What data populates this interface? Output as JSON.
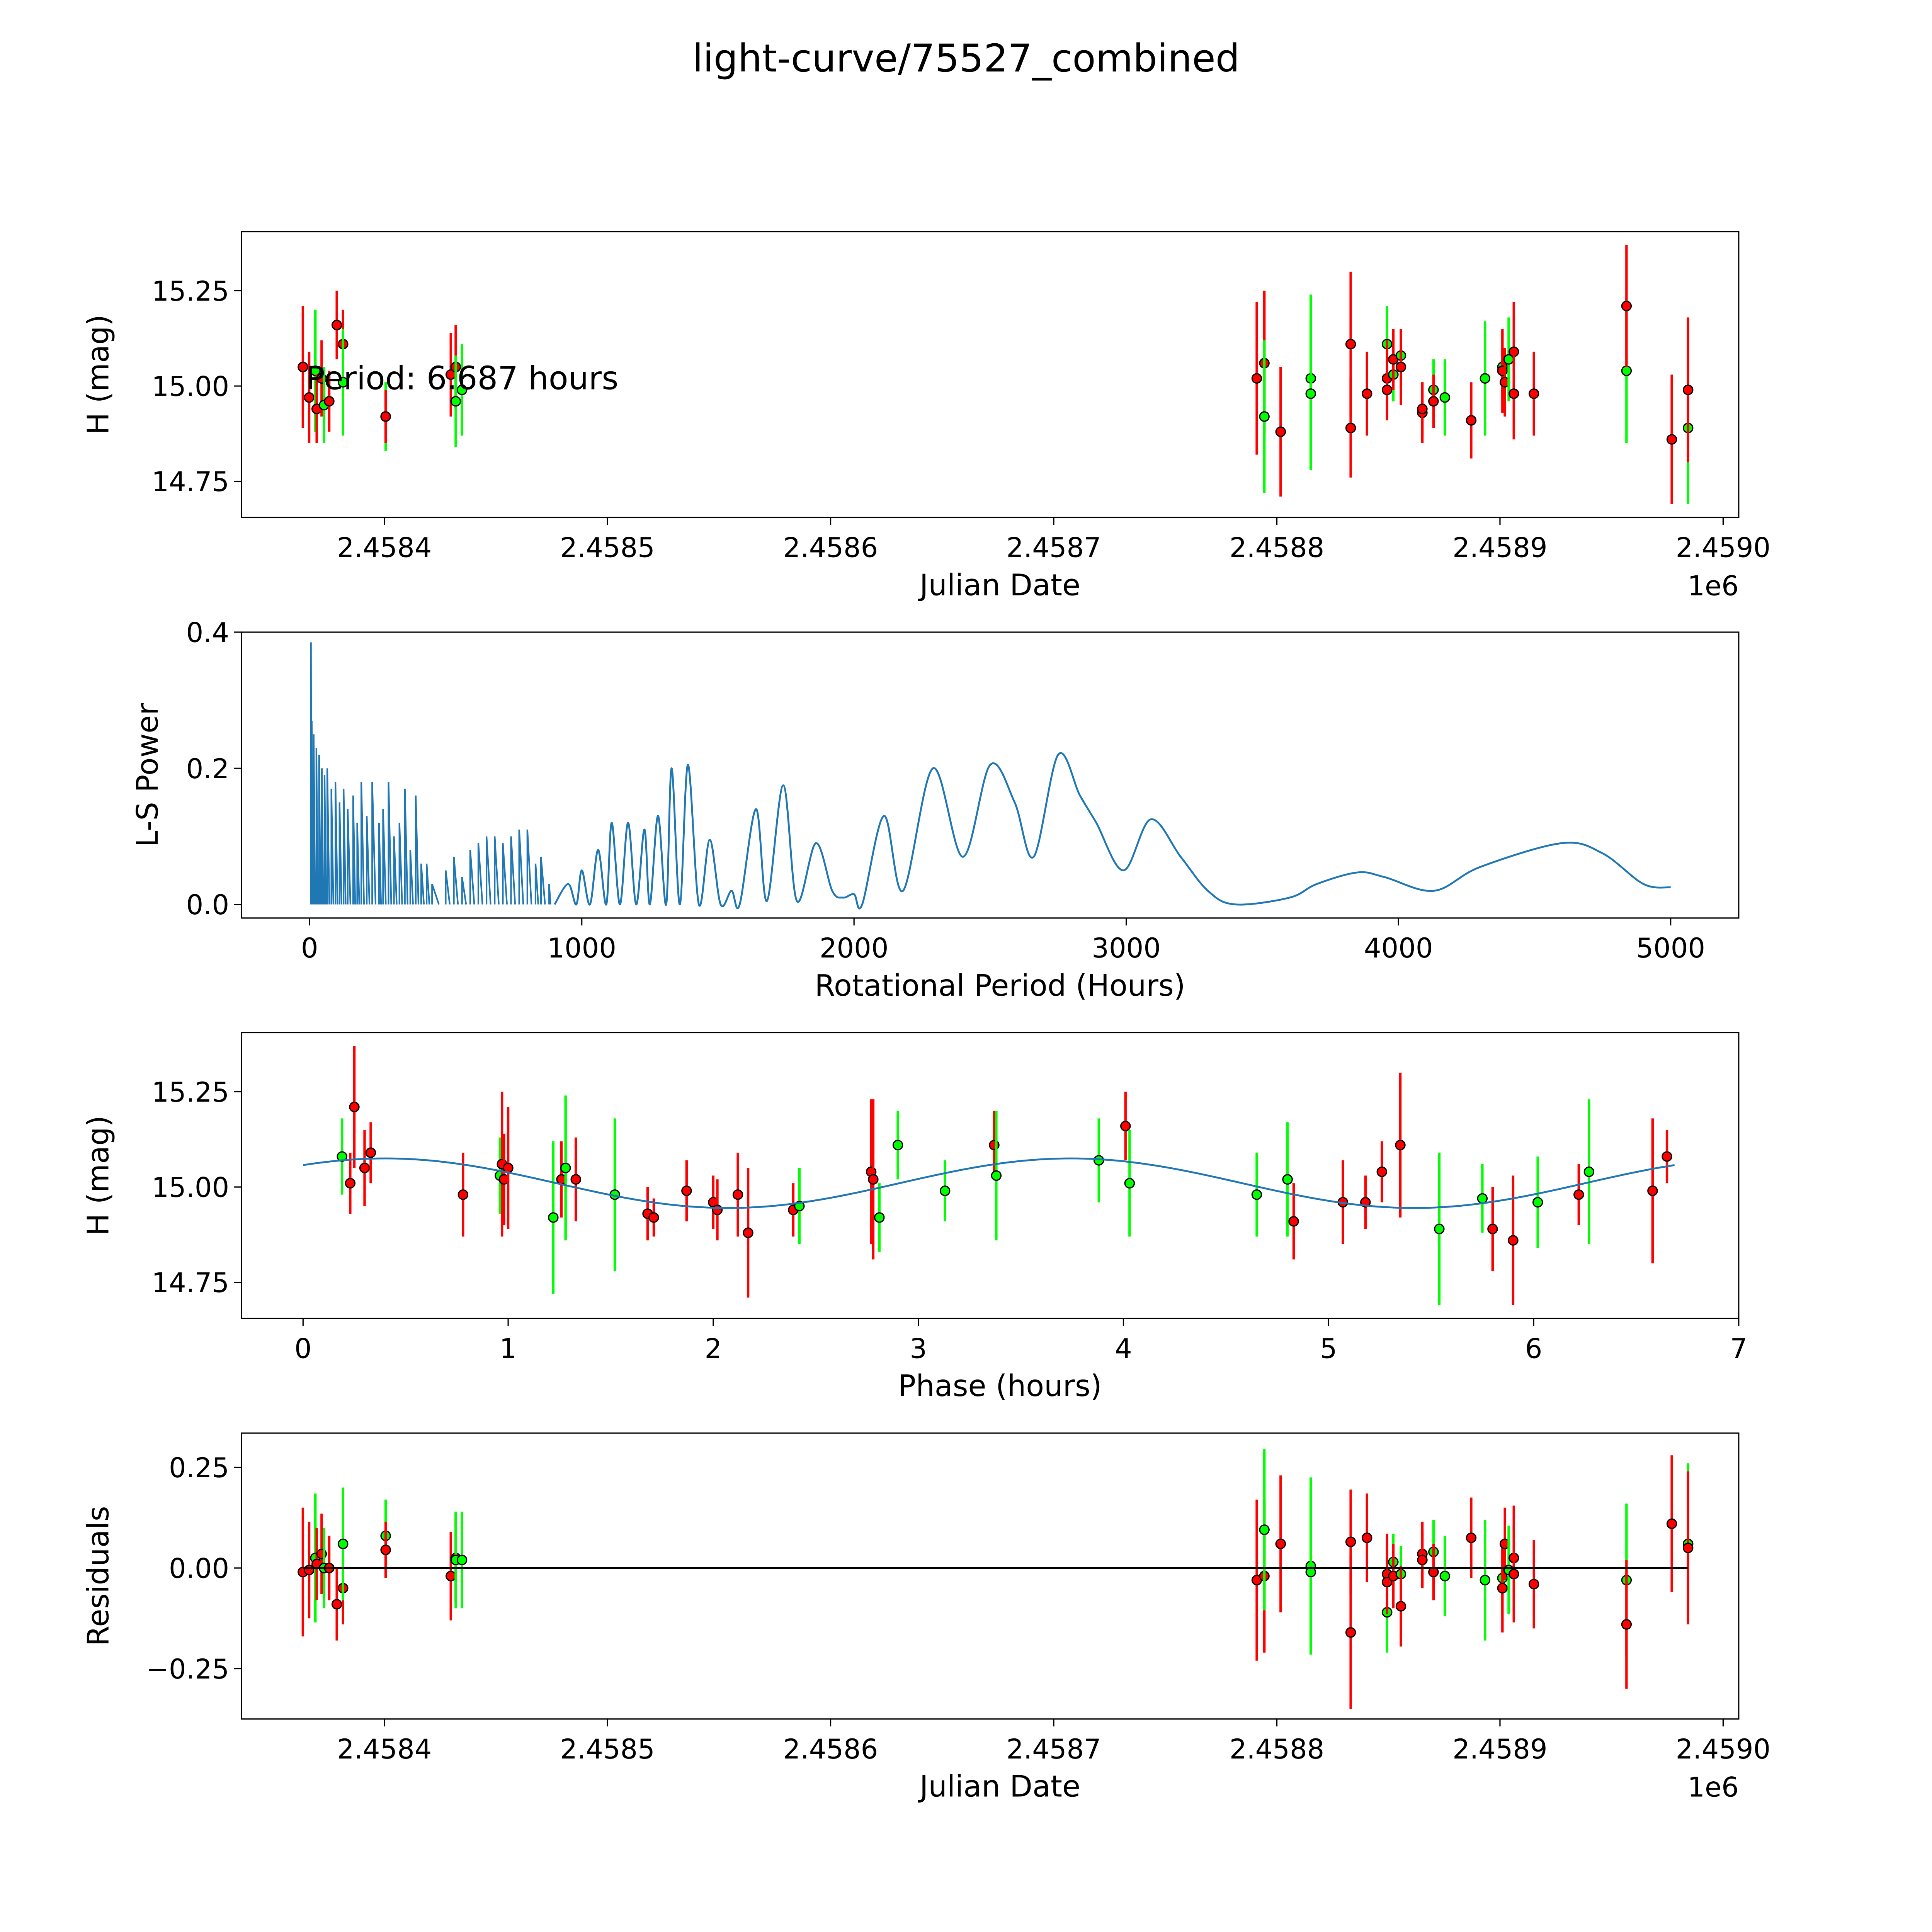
{
  "title": "light-curve/75527_combined",
  "colors": {
    "band_r": "#ff0000",
    "band_g": "#00ff00",
    "model": "#1f77b4",
    "residual_zero": "#000000"
  },
  "chart_data": [
    {
      "id": "lightcurve",
      "type": "scatter",
      "xlabel": "Julian Date",
      "ylabel": "H (mag)",
      "x_offset_label": "1e6",
      "xticks": [
        2458400,
        2458500,
        2458600,
        2458700,
        2458800,
        2458900,
        2459000
      ],
      "xtick_labels": [
        "2.4584",
        "2.4585",
        "2.4586",
        "2.4587",
        "2.4588",
        "2.4589",
        "2.4590"
      ],
      "xlim": [
        2458336,
        2459007
      ],
      "ylim": [
        14.655,
        15.405
      ],
      "yticks": [
        14.75,
        15.0,
        15.25
      ],
      "ytick_labels": [
        "14.75",
        "15.00",
        "15.25"
      ],
      "annotation": "Period: 6.687 hours"
    },
    {
      "id": "periodogram",
      "type": "line",
      "xlabel": "Rotational Period (Hours)",
      "ylabel": "L-S Power",
      "xlim": [
        -250,
        5250
      ],
      "ylim": [
        -0.02,
        0.4
      ],
      "xticks": [
        0,
        1000,
        2000,
        3000,
        4000,
        5000
      ],
      "xtick_labels": [
        "0",
        "1000",
        "2000",
        "3000",
        "4000",
        "5000"
      ],
      "yticks": [
        0,
        0.2,
        0.4
      ],
      "ytick_labels": [
        "0.0",
        "0.2",
        "0.4"
      ],
      "spikes": [
        [
          5,
          0.385
        ],
        [
          8,
          0.27
        ],
        [
          15,
          0.25
        ],
        [
          25,
          0.23
        ],
        [
          35,
          0.22
        ],
        [
          45,
          0.2
        ],
        [
          55,
          0.19
        ],
        [
          65,
          0.2
        ],
        [
          80,
          0.17
        ],
        [
          95,
          0.18
        ],
        [
          110,
          0.15
        ],
        [
          125,
          0.17
        ],
        [
          140,
          0.14
        ],
        [
          160,
          0.16
        ],
        [
          175,
          0.12
        ],
        [
          190,
          0.18
        ],
        [
          210,
          0.13
        ],
        [
          230,
          0.18
        ],
        [
          255,
          0.12
        ],
        [
          270,
          0.14
        ],
        [
          290,
          0.18
        ],
        [
          310,
          0.1
        ],
        [
          330,
          0.12
        ],
        [
          350,
          0.17
        ],
        [
          370,
          0.08
        ],
        [
          390,
          0.16
        ],
        [
          410,
          0.06
        ],
        [
          430,
          0.06
        ],
        [
          450,
          0.03
        ],
        [
          500,
          0.05
        ],
        [
          530,
          0.07
        ],
        [
          560,
          0.04
        ],
        [
          590,
          0.08
        ],
        [
          620,
          0.09
        ],
        [
          650,
          0.1
        ],
        [
          680,
          0.1
        ],
        [
          710,
          0.09
        ],
        [
          740,
          0.1
        ],
        [
          770,
          0.11
        ],
        [
          800,
          0.11
        ],
        [
          830,
          0.06
        ],
        [
          850,
          0.07
        ],
        [
          880,
          0.03
        ]
      ],
      "curve": [
        [
          900,
          0
        ],
        [
          950,
          0.03
        ],
        [
          980,
          0
        ],
        [
          1000,
          0.05
        ],
        [
          1030,
          0
        ],
        [
          1060,
          0.08
        ],
        [
          1090,
          0
        ],
        [
          1110,
          0.12
        ],
        [
          1140,
          0
        ],
        [
          1170,
          0.12
        ],
        [
          1200,
          0
        ],
        [
          1230,
          0.11
        ],
        [
          1250,
          0
        ],
        [
          1280,
          0.13
        ],
        [
          1310,
          0
        ],
        [
          1330,
          0.2
        ],
        [
          1360,
          0
        ],
        [
          1390,
          0.205
        ],
        [
          1430,
          0
        ],
        [
          1470,
          0.095
        ],
        [
          1510,
          0
        ],
        [
          1550,
          0.02
        ],
        [
          1580,
          0
        ],
        [
          1640,
          0.14
        ],
        [
          1680,
          0.005
        ],
        [
          1740,
          0.175
        ],
        [
          1790,
          0.005
        ],
        [
          1860,
          0.09
        ],
        [
          1920,
          0.02
        ],
        [
          1960,
          0.01
        ],
        [
          2000,
          0.015
        ],
        [
          2030,
          0
        ],
        [
          2110,
          0.13
        ],
        [
          2180,
          0.02
        ],
        [
          2290,
          0.2
        ],
        [
          2400,
          0.07
        ],
        [
          2500,
          0.205
        ],
        [
          2590,
          0.15
        ],
        [
          2660,
          0.07
        ],
        [
          2750,
          0.22
        ],
        [
          2830,
          0.16
        ],
        [
          2890,
          0.12
        ],
        [
          2990,
          0.05
        ],
        [
          3090,
          0.125
        ],
        [
          3200,
          0.07
        ],
        [
          3300,
          0.02
        ],
        [
          3400,
          0
        ],
        [
          3600,
          0.01
        ],
        [
          3700,
          0.03
        ],
        [
          3850,
          0.047
        ],
        [
          3950,
          0.04
        ],
        [
          4130,
          0.02
        ],
        [
          4300,
          0.055
        ],
        [
          4600,
          0.09
        ],
        [
          4750,
          0.075
        ],
        [
          4900,
          0.03
        ],
        [
          5000,
          0.025
        ]
      ]
    },
    {
      "id": "phased",
      "type": "scatter",
      "xlabel": "Phase (hours)",
      "ylabel": "H (mag)",
      "xlim": [
        -0.3,
        7.0
      ],
      "ylim": [
        14.655,
        15.405
      ],
      "xticks": [
        0,
        1,
        2,
        3,
        4,
        5,
        6,
        7
      ],
      "xtick_labels": [
        "0",
        "1",
        "2",
        "3",
        "4",
        "5",
        "6",
        "7"
      ],
      "yticks": [
        14.75,
        15.0,
        15.25
      ],
      "ytick_labels": [
        "14.75",
        "15.00",
        "15.25"
      ],
      "model": {
        "period_hours": 6.687,
        "mean": 15.01,
        "amplitude": 0.065,
        "peak_phase": 0.4
      },
      "points": [
        [
          0.19,
          15.08,
          0.1,
          "g"
        ],
        [
          0.23,
          15.01,
          0.08,
          "r"
        ],
        [
          0.25,
          15.21,
          0.16,
          "r"
        ],
        [
          0.3,
          15.05,
          0.1,
          "r"
        ],
        [
          0.33,
          15.09,
          0.08,
          "r"
        ],
        [
          0.78,
          14.98,
          0.11,
          "r"
        ],
        [
          0.96,
          15.03,
          0.1,
          "g"
        ],
        [
          0.97,
          15.06,
          0.19,
          "r"
        ],
        [
          0.98,
          15.02,
          0.12,
          "r"
        ],
        [
          1.0,
          15.05,
          0.16,
          "r"
        ],
        [
          1.22,
          14.92,
          0.2,
          "g"
        ],
        [
          1.26,
          15.02,
          0.1,
          "r"
        ],
        [
          1.28,
          15.05,
          0.19,
          "g"
        ],
        [
          1.33,
          15.02,
          0.11,
          "r"
        ],
        [
          1.52,
          14.98,
          0.2,
          "g"
        ],
        [
          1.68,
          14.93,
          0.07,
          "r"
        ],
        [
          1.71,
          14.92,
          0.05,
          "r"
        ],
        [
          1.87,
          14.99,
          0.08,
          "r"
        ],
        [
          2.0,
          14.96,
          0.07,
          "r"
        ],
        [
          2.02,
          14.94,
          0.08,
          "r"
        ],
        [
          2.12,
          14.98,
          0.11,
          "r"
        ],
        [
          2.17,
          14.88,
          0.17,
          "r"
        ],
        [
          2.39,
          14.94,
          0.07,
          "r"
        ],
        [
          2.42,
          14.95,
          0.1,
          "g"
        ],
        [
          2.77,
          15.04,
          0.19,
          "r"
        ],
        [
          2.78,
          15.02,
          0.21,
          "r"
        ],
        [
          2.81,
          14.92,
          0.09,
          "g"
        ],
        [
          2.9,
          15.11,
          0.09,
          "g"
        ],
        [
          3.13,
          14.99,
          0.08,
          "g"
        ],
        [
          3.37,
          15.11,
          0.09,
          "r"
        ],
        [
          3.38,
          15.03,
          0.17,
          "g"
        ],
        [
          3.88,
          15.07,
          0.11,
          "g"
        ],
        [
          4.01,
          15.16,
          0.09,
          "r"
        ],
        [
          4.03,
          15.01,
          0.14,
          "g"
        ],
        [
          4.65,
          14.98,
          0.11,
          "g"
        ],
        [
          4.8,
          15.02,
          0.15,
          "g"
        ],
        [
          4.83,
          14.91,
          0.1,
          "r"
        ],
        [
          5.07,
          14.96,
          0.11,
          "r"
        ],
        [
          5.18,
          14.96,
          0.07,
          "r"
        ],
        [
          5.26,
          15.04,
          0.08,
          "r"
        ],
        [
          5.35,
          15.11,
          0.19,
          "r"
        ],
        [
          5.54,
          14.89,
          0.2,
          "g"
        ],
        [
          5.75,
          14.97,
          0.09,
          "g"
        ],
        [
          5.8,
          14.89,
          0.11,
          "r"
        ],
        [
          5.9,
          14.86,
          0.17,
          "r"
        ],
        [
          6.02,
          14.96,
          0.12,
          "g"
        ],
        [
          6.22,
          14.98,
          0.08,
          "r"
        ],
        [
          6.27,
          15.04,
          0.19,
          "g"
        ],
        [
          6.58,
          14.99,
          0.19,
          "r"
        ],
        [
          6.65,
          15.08,
          0.07,
          "r"
        ]
      ]
    },
    {
      "id": "residuals",
      "type": "scatter",
      "xlabel": "Julian Date",
      "ylabel": "Residuals",
      "x_offset_label": "1e6",
      "xlim": [
        2458336,
        2459007
      ],
      "ylim": [
        -0.375,
        0.335
      ],
      "xticks": [
        2458400,
        2458500,
        2458600,
        2458700,
        2458800,
        2458900,
        2459000
      ],
      "xtick_labels": [
        "2.4584",
        "2.4585",
        "2.4586",
        "2.4587",
        "2.4588",
        "2.4589",
        "2.4590"
      ],
      "yticks": [
        -0.25,
        0,
        0.25
      ],
      "ytick_labels": [
        "−0.25",
        "0.00",
        "0.25"
      ]
    }
  ],
  "observations": [
    [
      2458363.5,
      15.05,
      0.16,
      "r",
      -0.01
    ],
    [
      2458366.3,
      14.97,
      0.12,
      "r",
      -0.005
    ],
    [
      2458369.1,
      15.04,
      0.16,
      "g",
      0.025
    ],
    [
      2458369.7,
      14.94,
      0.09,
      "r",
      0.01
    ],
    [
      2458371.9,
      15.02,
      0.1,
      "r",
      0.035
    ],
    [
      2458373.0,
      14.95,
      0.1,
      "g",
      0.0
    ],
    [
      2458375.3,
      14.96,
      0.08,
      "r",
      0.0
    ],
    [
      2458378.7,
      15.16,
      0.09,
      "r",
      -0.09
    ],
    [
      2458381.5,
      15.11,
      0.09,
      "r",
      -0.05
    ],
    [
      2458381.5,
      15.01,
      0.14,
      "g",
      0.06
    ],
    [
      2458400.6,
      14.92,
      0.09,
      "g",
      0.08
    ],
    [
      2458400.6,
      14.92,
      0.07,
      "r",
      0.045
    ],
    [
      2458429.8,
      15.03,
      0.11,
      "r",
      -0.02
    ],
    [
      2458432.0,
      15.05,
      0.11,
      "r",
      0.025
    ],
    [
      2458432.0,
      14.96,
      0.12,
      "g",
      0.02
    ],
    [
      2458434.8,
      14.99,
      0.12,
      "g",
      0.02
    ],
    [
      2458791.0,
      15.02,
      0.2,
      "r",
      -0.03
    ],
    [
      2458794.4,
      15.06,
      0.19,
      "r",
      -0.02
    ],
    [
      2458794.4,
      14.92,
      0.2,
      "g",
      0.095
    ],
    [
      2458801.7,
      14.88,
      0.17,
      "r",
      0.06
    ],
    [
      2458815.2,
      15.02,
      0.22,
      "g",
      0.005
    ],
    [
      2458815.2,
      14.98,
      0.2,
      "g",
      -0.01
    ],
    [
      2458833.1,
      15.11,
      0.19,
      "r",
      -0.16
    ],
    [
      2458833.1,
      14.89,
      0.13,
      "r",
      0.065
    ],
    [
      2458840.4,
      14.98,
      0.11,
      "r",
      0.075
    ],
    [
      2458849.4,
      15.11,
      0.1,
      "g",
      -0.11
    ],
    [
      2458849.4,
      15.02,
      0.1,
      "r",
      -0.015
    ],
    [
      2458849.4,
      14.99,
      0.08,
      "r",
      -0.035
    ],
    [
      2458852.2,
      15.03,
      0.07,
      "g",
      0.015
    ],
    [
      2458852.2,
      15.07,
      0.08,
      "r",
      -0.02
    ],
    [
      2458855.6,
      15.08,
      0.07,
      "g",
      -0.015
    ],
    [
      2458855.6,
      15.05,
      0.1,
      "r",
      -0.095
    ],
    [
      2458865.2,
      14.93,
      0.08,
      "r",
      0.035
    ],
    [
      2458865.2,
      14.94,
      0.07,
      "r",
      0.02
    ],
    [
      2458870.2,
      14.99,
      0.08,
      "g",
      0.04
    ],
    [
      2458870.2,
      14.96,
      0.07,
      "r",
      -0.01
    ],
    [
      2458875.3,
      14.97,
      0.1,
      "g",
      -0.02
    ],
    [
      2458887.1,
      14.91,
      0.1,
      "r",
      0.075
    ],
    [
      2458893.3,
      15.02,
      0.15,
      "g",
      -0.03
    ],
    [
      2458901.1,
      15.05,
      0.08,
      "g",
      -0.025
    ],
    [
      2458901.1,
      15.04,
      0.11,
      "r",
      -0.05
    ],
    [
      2458902.2,
      15.01,
      0.09,
      "r",
      0.06
    ],
    [
      2458903.9,
      15.07,
      0.11,
      "g",
      -0.005
    ],
    [
      2458906.2,
      15.09,
      0.13,
      "r",
      0.025
    ],
    [
      2458906.2,
      14.98,
      0.12,
      "r",
      -0.015
    ],
    [
      2458915.2,
      14.98,
      0.11,
      "r",
      -0.04
    ],
    [
      2458956.7,
      15.04,
      0.19,
      "g",
      -0.03
    ],
    [
      2458956.7,
      15.21,
      0.16,
      "r",
      -0.14
    ],
    [
      2458977.0,
      14.86,
      0.17,
      "r",
      0.11
    ],
    [
      2458984.3,
      14.89,
      0.2,
      "g",
      0.06
    ],
    [
      2458984.3,
      14.99,
      0.19,
      "r",
      0.05
    ]
  ]
}
